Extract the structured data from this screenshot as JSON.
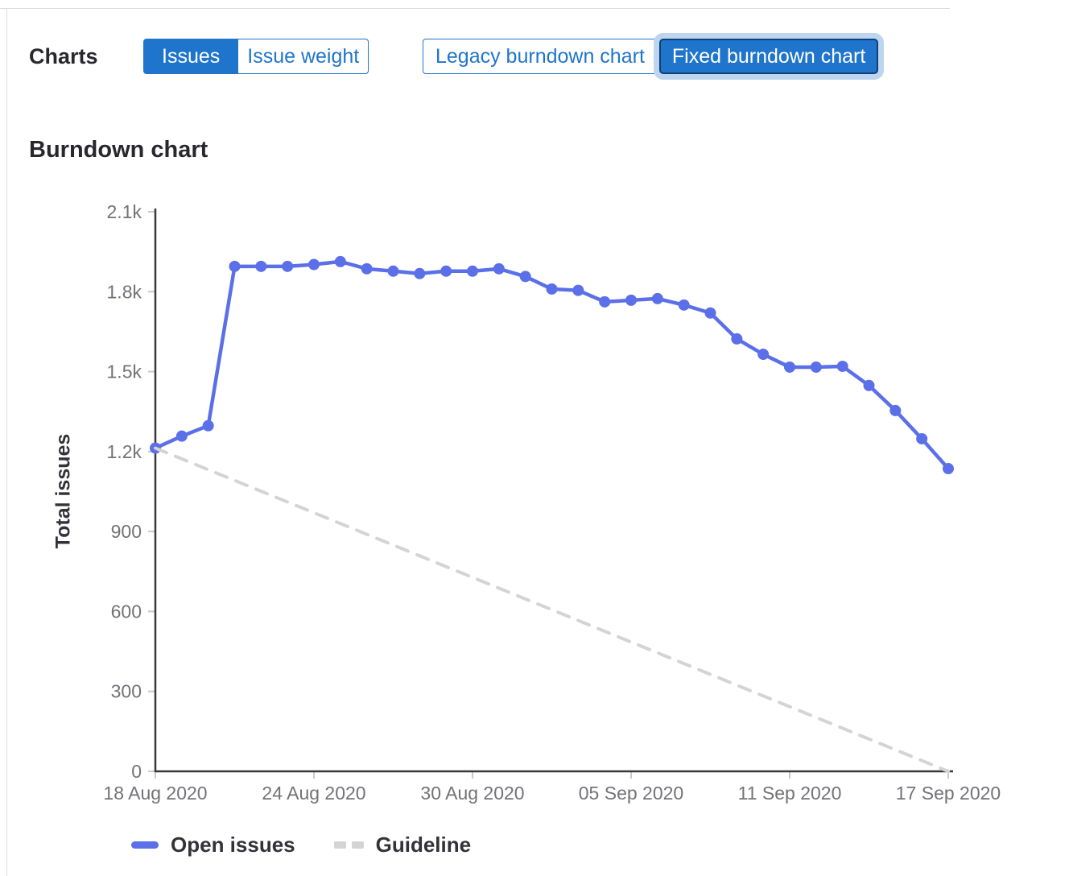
{
  "header": {
    "charts_label": "Charts",
    "metric_toggle": {
      "issues_label": "Issues",
      "issue_weight_label": "Issue weight",
      "selected": "Issues"
    },
    "version_toggle": {
      "legacy_label": "Legacy burndown chart",
      "fixed_label": "Fixed burndown chart",
      "selected": "Fixed burndown chart"
    }
  },
  "section": {
    "title": "Burndown chart"
  },
  "colors": {
    "accent_blue": "#1f75cb",
    "active_button_border": "#0e3f77",
    "focus_ring": "#bed5ef",
    "open_issues_line": "#5b6fe8",
    "guideline_gray": "#d4d4d4",
    "axis": "#383838",
    "tick": "#c9c9c9",
    "tick_label": "#737278",
    "heading_text": "#28272d",
    "divider": "#dcdcde"
  },
  "chart_data": {
    "type": "line",
    "title": "Burndown chart",
    "xlabel": "",
    "ylabel": "Total issues",
    "ylim": [
      0,
      2100
    ],
    "grid": false,
    "legend_position": "bottom",
    "yticks": [
      0,
      300,
      600,
      900,
      1200,
      1500,
      1800,
      2100
    ],
    "ytick_labels": [
      "0",
      "300",
      "600",
      "900",
      "1.2k",
      "1.5k",
      "1.8k",
      "2.1k"
    ],
    "x_start": "2020-08-18",
    "x_end": "2020-09-17",
    "xtick_day_indices": [
      0,
      6,
      12,
      18,
      24,
      30
    ],
    "xtick_labels": [
      "18 Aug 2020",
      "24 Aug 2020",
      "30 Aug 2020",
      "05 Sep 2020",
      "11 Sep 2020",
      "17 Sep 2020"
    ],
    "series": [
      {
        "name": "Open issues",
        "style": "solid",
        "marker": "circle",
        "color": "#5b6fe8",
        "dates": [
          "2020-08-18",
          "2020-08-19",
          "2020-08-20",
          "2020-08-21",
          "2020-08-22",
          "2020-08-23",
          "2020-08-24",
          "2020-08-25",
          "2020-08-26",
          "2020-08-27",
          "2020-08-28",
          "2020-08-29",
          "2020-08-30",
          "2020-08-31",
          "2020-09-01",
          "2020-09-02",
          "2020-09-03",
          "2020-09-04",
          "2020-09-05",
          "2020-09-06",
          "2020-09-07",
          "2020-09-08",
          "2020-09-09",
          "2020-09-10",
          "2020-09-11",
          "2020-09-12",
          "2020-09-13",
          "2020-09-14",
          "2020-09-15",
          "2020-09-16",
          "2020-09-17"
        ],
        "values": [
          1213,
          1258,
          1297,
          1895,
          1895,
          1895,
          1902,
          1913,
          1886,
          1877,
          1868,
          1877,
          1877,
          1886,
          1857,
          1810,
          1805,
          1762,
          1768,
          1774,
          1750,
          1720,
          1623,
          1565,
          1517,
          1517,
          1520,
          1448,
          1354,
          1248,
          1136
        ]
      },
      {
        "name": "Guideline",
        "style": "dashed",
        "marker": "none",
        "color": "#d4d4d4",
        "dates": [
          "2020-08-18",
          "2020-09-17"
        ],
        "values": [
          1213,
          0
        ]
      }
    ]
  }
}
